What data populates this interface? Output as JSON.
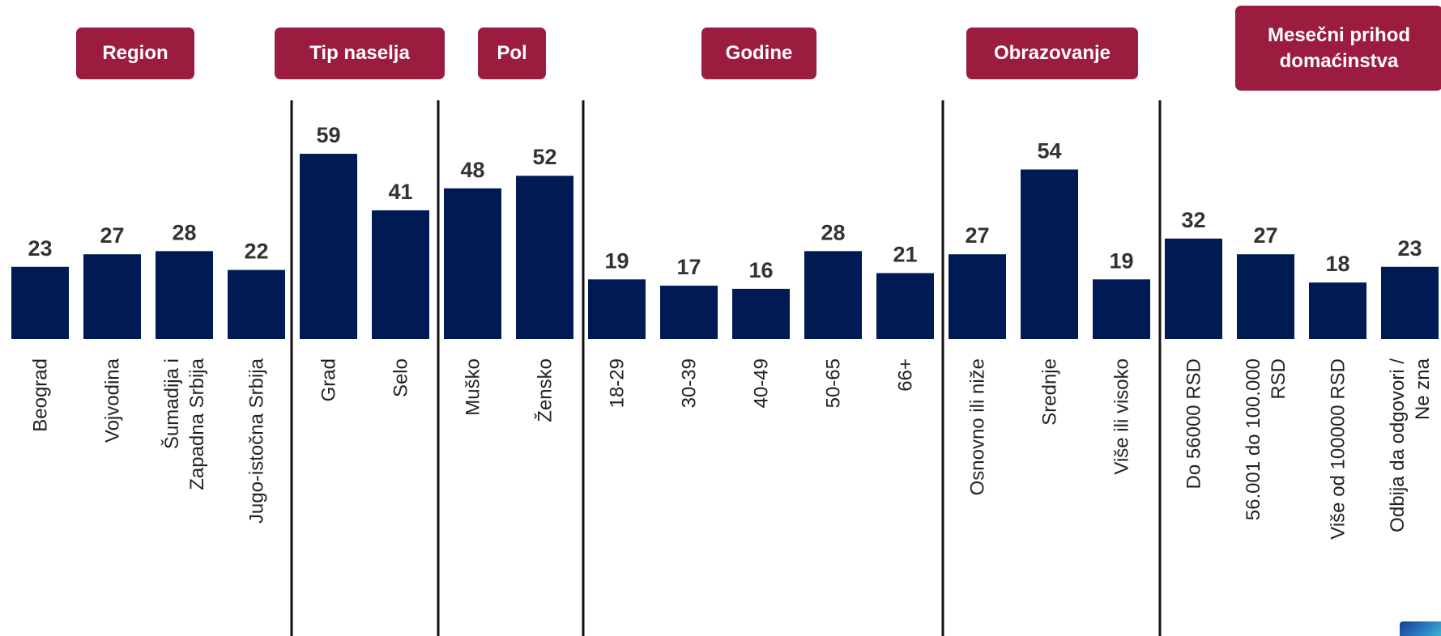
{
  "chart_data": {
    "type": "bar",
    "bar_color": "#001a54",
    "header_color": "#9b1c3f",
    "groups": [
      {
        "name": "Region",
        "categories": [
          "Beograd",
          "Vojvodina",
          "Šumadija i\nZapadna Srbija",
          "Jugo-istočna Srbija"
        ],
        "values": [
          23,
          27,
          28,
          22
        ]
      },
      {
        "name": "Tip naselja",
        "categories": [
          "Grad",
          "Selo"
        ],
        "values": [
          59,
          41
        ]
      },
      {
        "name": "Pol",
        "categories": [
          "Muško",
          "Žensko"
        ],
        "values": [
          48,
          52
        ]
      },
      {
        "name": "Godine",
        "categories": [
          "18-29",
          "30-39",
          "40-49",
          "50-65",
          "66+"
        ],
        "values": [
          19,
          17,
          16,
          28,
          21
        ]
      },
      {
        "name": "Obrazovanje",
        "categories": [
          "Osnovno ili niže",
          "Srednje",
          "Više ili visoko"
        ],
        "values": [
          27,
          54,
          19
        ]
      },
      {
        "name": "Mesečni prihod\ndomaćinstva",
        "categories": [
          "Do 56000 RSD",
          "56.001 do 100.000\nRSD",
          "Više od 100000 RSD",
          "Odbija da odgovori /\nNe zna"
        ],
        "values": [
          32,
          27,
          18,
          23
        ]
      }
    ]
  }
}
